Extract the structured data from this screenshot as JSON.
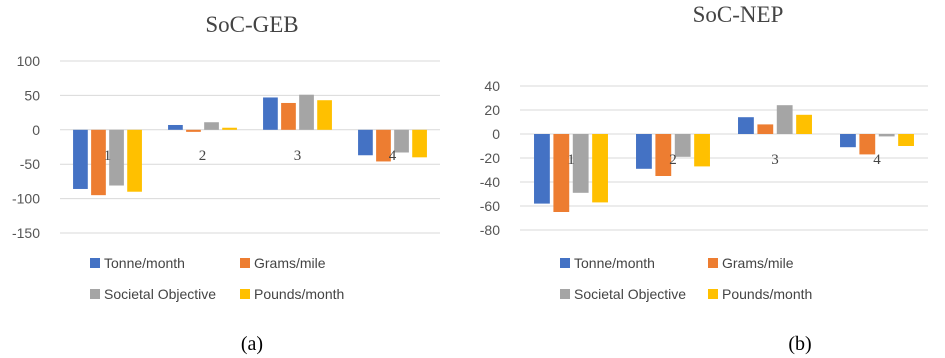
{
  "chart_data": [
    {
      "type": "bar",
      "title": "SoC-GEB",
      "caption": "(a)",
      "categories": [
        "1",
        "2",
        "3",
        "4"
      ],
      "ylim": [
        -150,
        100
      ],
      "yticks": [
        -150,
        -100,
        -50,
        0,
        50,
        100
      ],
      "grid": true,
      "legend_position": "bottom",
      "series": [
        {
          "name": "Tonne/month",
          "color": "#4472C4",
          "values": [
            -86,
            7,
            47,
            -37
          ]
        },
        {
          "name": "Grams/mile",
          "color": "#ED7D31",
          "values": [
            -95,
            -3,
            39,
            -46
          ]
        },
        {
          "name": "Societal Objective",
          "color": "#A5A5A5",
          "values": [
            -81,
            11,
            51,
            -33
          ]
        },
        {
          "name": "Pounds/month",
          "color": "#FFC000",
          "values": [
            -90,
            3,
            43,
            -40
          ]
        }
      ]
    },
    {
      "type": "bar",
      "title": "SoC-NEP",
      "caption": "(b)",
      "categories": [
        "1",
        "2",
        "3",
        "4"
      ],
      "ylim": [
        -80,
        40
      ],
      "yticks": [
        -80,
        -60,
        -40,
        -20,
        0,
        20,
        40
      ],
      "grid": true,
      "legend_position": "bottom",
      "series": [
        {
          "name": "Tonne/month",
          "color": "#4472C4",
          "values": [
            -58,
            -29,
            14,
            -11
          ]
        },
        {
          "name": "Grams/mile",
          "color": "#ED7D31",
          "values": [
            -65,
            -35,
            8,
            -17
          ]
        },
        {
          "name": "Societal Objective",
          "color": "#A5A5A5",
          "values": [
            -49,
            -19,
            24,
            -2
          ]
        },
        {
          "name": "Pounds/month",
          "color": "#FFC000",
          "values": [
            -57,
            -27,
            16,
            -10
          ]
        }
      ]
    }
  ]
}
